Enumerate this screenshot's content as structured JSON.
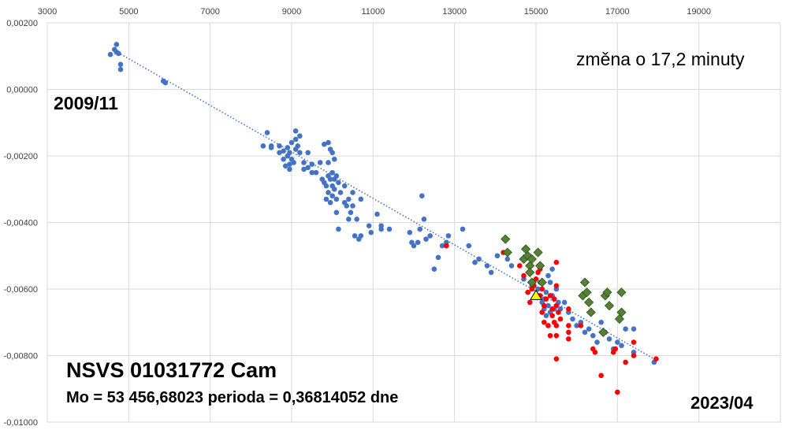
{
  "chart_data": {
    "type": "scatter",
    "xlim": [
      3000,
      21000
    ],
    "ylim": [
      -0.01,
      0.002
    ],
    "x_ticks": [
      3000,
      5000,
      7000,
      9000,
      11000,
      13000,
      15000,
      17000,
      19000
    ],
    "y_ticks": [
      0.002,
      0,
      -0.002,
      -0.004,
      -0.006,
      -0.008,
      -0.01
    ],
    "x_tick_labels": [
      "3000",
      "5000",
      "7000",
      "9000",
      "11000",
      "13000",
      "15000",
      "17000",
      "19000"
    ],
    "y_tick_labels": [
      "0,00200",
      "0,00000",
      "-0,00200",
      "-0,00400",
      "-0,00600",
      "-0,00800",
      "-0,01000"
    ],
    "x_axis_position": "top",
    "grid": true,
    "annotations": {
      "top_left": "2009/11",
      "bottom_right": "2023/04",
      "change": "změna o 17,2 minuty",
      "star": "NSVS 01031772 Cam",
      "elements": "Mo = 53 456,68023  perioda = 0,36814052 dne"
    },
    "trendline": {
      "style": "dotted",
      "color": "#4472c4",
      "from": [
        4600,
        0.0012
      ],
      "to": [
        17900,
        -0.0081
      ]
    },
    "colors": {
      "blue": "#4472c4",
      "red": "#ff0000",
      "green": "#548235",
      "yellow": "#ffff00"
    },
    "series": [
      {
        "marker": "circle",
        "color": "#4472c4",
        "points": [
          [
            4550,
            0.00105
          ],
          [
            4650,
            0.0012
          ],
          [
            4700,
            0.00135
          ],
          [
            4700,
            0.00112
          ],
          [
            4750,
            0.00108
          ],
          [
            4800,
            0.00075
          ],
          [
            4800,
            0.0006
          ],
          [
            5850,
            0.00025
          ],
          [
            5900,
            0.0002
          ],
          [
            8300,
            -0.0017
          ],
          [
            8400,
            -0.0013
          ],
          [
            8500,
            -0.00175
          ],
          [
            8500,
            -0.0017
          ],
          [
            8700,
            -0.0019
          ],
          [
            8700,
            -0.0017
          ],
          [
            8800,
            -0.0021
          ],
          [
            8800,
            -0.00185
          ],
          [
            8850,
            -0.0023
          ],
          [
            8900,
            -0.002
          ],
          [
            8900,
            -0.00175
          ],
          [
            8950,
            -0.00225
          ],
          [
            8950,
            -0.0019
          ],
          [
            8950,
            -0.0024
          ],
          [
            9000,
            -0.0016
          ],
          [
            9000,
            -0.0021
          ],
          [
            9050,
            -0.0022
          ],
          [
            9100,
            -0.0015
          ],
          [
            9100,
            -0.0018
          ],
          [
            9100,
            -0.00125
          ],
          [
            9150,
            -0.0017
          ],
          [
            9200,
            -0.0014
          ],
          [
            9200,
            -0.0019
          ],
          [
            9300,
            -0.0022
          ],
          [
            9300,
            -0.0024
          ],
          [
            9400,
            -0.0019
          ],
          [
            9400,
            -0.00235
          ],
          [
            9500,
            -0.00225
          ],
          [
            9500,
            -0.0025
          ],
          [
            9600,
            -0.0025
          ],
          [
            9700,
            -0.0022
          ],
          [
            9750,
            -0.0027
          ],
          [
            9800,
            -0.00165
          ],
          [
            9800,
            -0.0028
          ],
          [
            9850,
            -0.0029
          ],
          [
            9850,
            -0.0033
          ],
          [
            9900,
            -0.0016
          ],
          [
            9900,
            -0.0022
          ],
          [
            9900,
            -0.0026
          ],
          [
            9900,
            -0.0031
          ],
          [
            9950,
            -0.0018
          ],
          [
            9950,
            -0.0027
          ],
          [
            9950,
            -0.0034
          ],
          [
            10000,
            -0.0019
          ],
          [
            10000,
            -0.0025
          ],
          [
            10000,
            -0.0029
          ],
          [
            10000,
            -0.0032
          ],
          [
            10050,
            -0.0021
          ],
          [
            10050,
            -0.0027
          ],
          [
            10050,
            -0.003
          ],
          [
            10100,
            -0.0026
          ],
          [
            10100,
            -0.0033
          ],
          [
            10100,
            -0.0037
          ],
          [
            10150,
            -0.0042
          ],
          [
            10150,
            -0.0028
          ],
          [
            10200,
            -0.0031
          ],
          [
            10300,
            -0.0029
          ],
          [
            10300,
            -0.0034
          ],
          [
            10350,
            -0.0035
          ],
          [
            10400,
            -0.0033
          ],
          [
            10400,
            -0.0039
          ],
          [
            10450,
            -0.0037
          ],
          [
            10500,
            -0.0031
          ],
          [
            10500,
            -0.0035
          ],
          [
            10550,
            -0.0044
          ],
          [
            10600,
            -0.0039
          ],
          [
            10650,
            -0.0045
          ],
          [
            10700,
            -0.0033
          ],
          [
            10700,
            -0.0044
          ],
          [
            10900,
            -0.0041
          ],
          [
            10950,
            -0.0043
          ],
          [
            11100,
            -0.00375
          ],
          [
            11200,
            -0.0041
          ],
          [
            11200,
            -0.0042
          ],
          [
            11400,
            -0.0042
          ],
          [
            11900,
            -0.0043
          ],
          [
            11950,
            -0.0046
          ],
          [
            12000,
            -0.0047
          ],
          [
            12100,
            -0.0046
          ],
          [
            12150,
            -0.0042
          ],
          [
            12200,
            -0.0032
          ],
          [
            12250,
            -0.0039
          ],
          [
            12300,
            -0.0045
          ],
          [
            12400,
            -0.0044
          ],
          [
            12500,
            -0.0054
          ],
          [
            12600,
            -0.00505
          ],
          [
            12700,
            -0.0047
          ],
          [
            12800,
            -0.0046
          ],
          [
            12850,
            -0.0044
          ],
          [
            13200,
            -0.0042
          ],
          [
            13350,
            -0.0047
          ],
          [
            13500,
            -0.0052
          ],
          [
            13600,
            -0.0051
          ],
          [
            13800,
            -0.0053
          ],
          [
            13900,
            -0.0055
          ],
          [
            14050,
            -0.005
          ],
          [
            14300,
            -0.0051
          ],
          [
            14400,
            -0.0053
          ],
          [
            14700,
            -0.0057
          ],
          [
            14800,
            -0.0061
          ],
          [
            14900,
            -0.0059
          ],
          [
            15000,
            -0.0062
          ],
          [
            15050,
            -0.006
          ],
          [
            15100,
            -0.0058
          ],
          [
            15150,
            -0.0064
          ],
          [
            15200,
            -0.0063
          ],
          [
            15200,
            -0.0066
          ],
          [
            15250,
            -0.0061
          ],
          [
            15250,
            -0.0068
          ],
          [
            15300,
            -0.0056
          ],
          [
            15300,
            -0.0065
          ],
          [
            15350,
            -0.0058
          ],
          [
            15350,
            -0.0067
          ],
          [
            15400,
            -0.0054
          ],
          [
            15400,
            -0.0062
          ],
          [
            15450,
            -0.0066
          ],
          [
            15500,
            -0.006
          ],
          [
            15550,
            -0.0064
          ],
          [
            15600,
            -0.0066
          ],
          [
            15700,
            -0.0064
          ],
          [
            15800,
            -0.0067
          ],
          [
            15900,
            -0.0069
          ],
          [
            16000,
            -0.0071
          ],
          [
            16100,
            -0.007
          ],
          [
            16200,
            -0.0073
          ],
          [
            16300,
            -0.0072
          ],
          [
            16400,
            -0.0074
          ],
          [
            16500,
            -0.0076
          ],
          [
            16600,
            -0.007
          ],
          [
            16700,
            -0.0073
          ],
          [
            16800,
            -0.0075
          ],
          [
            16900,
            -0.0078
          ],
          [
            17000,
            -0.0076
          ],
          [
            17100,
            -0.0077
          ],
          [
            17200,
            -0.0072
          ],
          [
            17400,
            -0.0079
          ],
          [
            17400,
            -0.0072
          ],
          [
            17900,
            -0.0082
          ]
        ]
      },
      {
        "marker": "circle",
        "color": "#ff0000",
        "points": [
          [
            12800,
            -0.0047
          ],
          [
            14200,
            -0.0049
          ],
          [
            14600,
            -0.0053
          ],
          [
            14700,
            -0.0056
          ],
          [
            14800,
            -0.0061
          ],
          [
            14850,
            -0.0064
          ],
          [
            14900,
            -0.006
          ],
          [
            14950,
            -0.0059
          ],
          [
            15000,
            -0.0057
          ],
          [
            15050,
            -0.0055
          ],
          [
            15050,
            -0.0062
          ],
          [
            15100,
            -0.0062
          ],
          [
            15100,
            -0.0054
          ],
          [
            15150,
            -0.0067
          ],
          [
            15150,
            -0.006
          ],
          [
            15200,
            -0.0065
          ],
          [
            15200,
            -0.007
          ],
          [
            15250,
            -0.0063
          ],
          [
            15300,
            -0.0071
          ],
          [
            15350,
            -0.0062
          ],
          [
            15350,
            -0.0074
          ],
          [
            15400,
            -0.0066
          ],
          [
            15400,
            -0.0068
          ],
          [
            15450,
            -0.0063
          ],
          [
            15450,
            -0.007
          ],
          [
            15500,
            -0.0052
          ],
          [
            15500,
            -0.0059
          ],
          [
            15500,
            -0.0065
          ],
          [
            15500,
            -0.0071
          ],
          [
            15500,
            -0.0074
          ],
          [
            15500,
            -0.0081
          ],
          [
            15550,
            -0.0067
          ],
          [
            15600,
            -0.0069
          ],
          [
            15800,
            -0.0071
          ],
          [
            15800,
            -0.0073
          ],
          [
            15800,
            -0.0075
          ],
          [
            15800,
            -0.0066
          ],
          [
            16100,
            -0.0071
          ],
          [
            16400,
            -0.0078
          ],
          [
            16450,
            -0.0079
          ],
          [
            16600,
            -0.0086
          ],
          [
            16900,
            -0.0079
          ],
          [
            16950,
            -0.0078
          ],
          [
            17000,
            -0.0091
          ],
          [
            17200,
            -0.0082
          ],
          [
            17400,
            -0.0076
          ],
          [
            17400,
            -0.008
          ],
          [
            17950,
            -0.0081
          ]
        ]
      },
      {
        "marker": "diamond",
        "color": "#548235",
        "points": [
          [
            14250,
            -0.0045
          ],
          [
            14300,
            -0.0049
          ],
          [
            14700,
            -0.0051
          ],
          [
            14750,
            -0.0048
          ],
          [
            14800,
            -0.005
          ],
          [
            14850,
            -0.0053
          ],
          [
            14850,
            -0.0055
          ],
          [
            14900,
            -0.0058
          ],
          [
            14900,
            -0.0051
          ],
          [
            15050,
            -0.0049
          ],
          [
            15100,
            -0.0053
          ],
          [
            15150,
            -0.0058
          ],
          [
            16150,
            -0.0062
          ],
          [
            16200,
            -0.0058
          ],
          [
            16250,
            -0.0061
          ],
          [
            16300,
            -0.0064
          ],
          [
            16350,
            -0.0067
          ],
          [
            16650,
            -0.0073
          ],
          [
            16700,
            -0.0062
          ],
          [
            16750,
            -0.0061
          ],
          [
            16800,
            -0.0065
          ],
          [
            17050,
            -0.0069
          ],
          [
            17100,
            -0.0061
          ],
          [
            17100,
            -0.0067
          ]
        ]
      },
      {
        "marker": "triangle",
        "color": "#ffff00",
        "points": [
          [
            15000,
            -0.0062
          ]
        ]
      }
    ]
  }
}
